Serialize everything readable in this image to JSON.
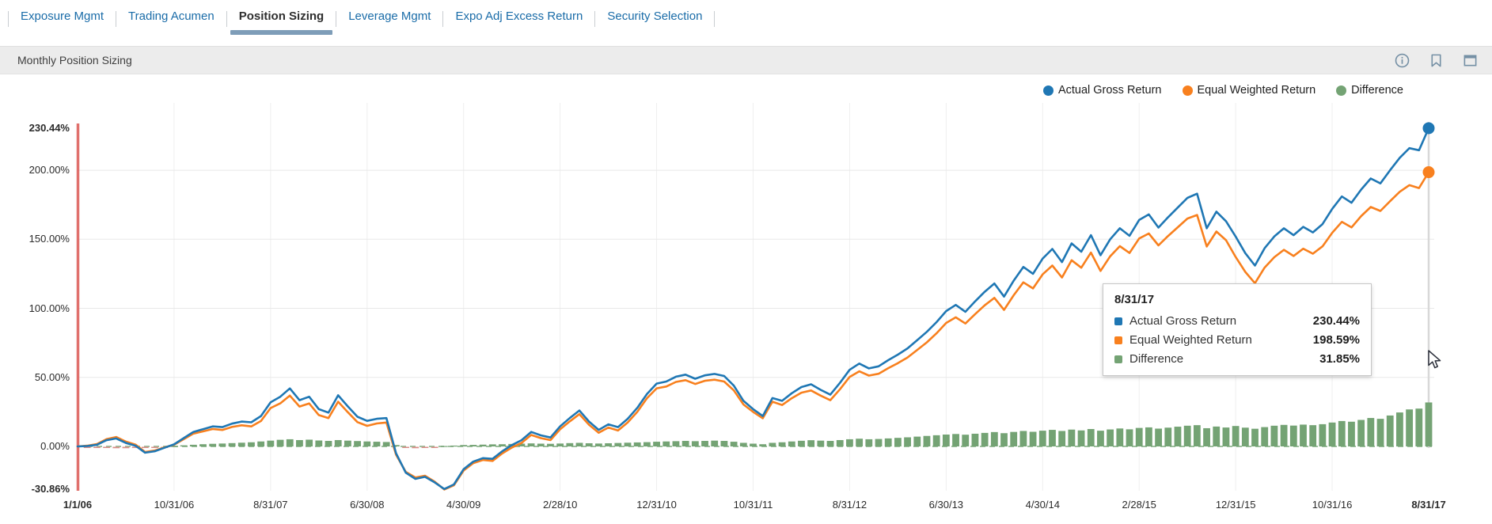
{
  "tabs": [
    {
      "label": "Exposure Mgmt",
      "active": false
    },
    {
      "label": "Trading Acumen",
      "active": false
    },
    {
      "label": "Position Sizing",
      "active": true
    },
    {
      "label": "Leverage Mgmt",
      "active": false
    },
    {
      "label": "Expo Adj Excess Return",
      "active": false
    },
    {
      "label": "Security Selection",
      "active": false
    }
  ],
  "panel": {
    "title": "Monthly Position Sizing",
    "icons": [
      "info-icon",
      "bookmark-icon",
      "window-icon"
    ]
  },
  "legend": [
    {
      "label": "Actual Gross Return",
      "color": "#1f77b4"
    },
    {
      "label": "Equal Weighted Return",
      "color": "#f8801e"
    },
    {
      "label": "Difference",
      "color": "#74a374"
    }
  ],
  "tooltip": {
    "date": "8/31/17",
    "rows": [
      {
        "label": "Actual Gross Return",
        "value": "230.44%",
        "color": "#1f77b4"
      },
      {
        "label": "Equal Weighted Return",
        "value": "198.59%",
        "color": "#f8801e"
      },
      {
        "label": "Difference",
        "value": "31.85%",
        "color": "#74a374"
      }
    ]
  },
  "colors": {
    "blue": "#1f77b4",
    "orange": "#f8801e",
    "green": "#74a374",
    "neg_bar": "#d98c86",
    "red_start_line": "#dd615d",
    "grid_h": "#e8e8e8",
    "grid_v": "#efefef",
    "zero_dash": "#9ebf9e",
    "hover_line": "#d8d8d8",
    "tab_blue": "#1a6ca8",
    "active_underline": "#7e9db8",
    "header_bg": "#ececec",
    "icon_gray": "#7590a5"
  },
  "chart_data": {
    "type": "line+bar",
    "title": "Monthly Position Sizing",
    "x_start_label": "1/1/06",
    "x_end_label": "8/31/17",
    "months_total": 140,
    "x_ticks": [
      {
        "label": "1/1/06",
        "month": 0,
        "bold": true
      },
      {
        "label": "10/31/06",
        "month": 10,
        "bold": false
      },
      {
        "label": "8/31/07",
        "month": 20,
        "bold": false
      },
      {
        "label": "6/30/08",
        "month": 30,
        "bold": false
      },
      {
        "label": "4/30/09",
        "month": 40,
        "bold": false
      },
      {
        "label": "2/28/10",
        "month": 50,
        "bold": false
      },
      {
        "label": "12/31/10",
        "month": 60,
        "bold": false
      },
      {
        "label": "10/31/11",
        "month": 70,
        "bold": false
      },
      {
        "label": "8/31/12",
        "month": 80,
        "bold": false
      },
      {
        "label": "6/30/13",
        "month": 90,
        "bold": false
      },
      {
        "label": "4/30/14",
        "month": 100,
        "bold": false
      },
      {
        "label": "2/28/15",
        "month": 110,
        "bold": false
      },
      {
        "label": "12/31/15",
        "month": 120,
        "bold": false
      },
      {
        "label": "10/31/16",
        "month": 130,
        "bold": false
      },
      {
        "label": "8/31/17",
        "month": 140,
        "bold": true
      }
    ],
    "y_ticks": [
      {
        "label": "230.44%",
        "value": 230.44,
        "bold": true,
        "grid": "none"
      },
      {
        "label": "200.00%",
        "value": 200,
        "bold": false,
        "grid": "solid"
      },
      {
        "label": "150.00%",
        "value": 150,
        "bold": false,
        "grid": "solid"
      },
      {
        "label": "100.00%",
        "value": 100,
        "bold": false,
        "grid": "solid"
      },
      {
        "label": "50.00%",
        "value": 50,
        "bold": false,
        "grid": "solid"
      },
      {
        "label": "0.00%",
        "value": 0,
        "bold": false,
        "grid": "dashed"
      },
      {
        "label": "-30.86%",
        "value": -30.86,
        "bold": true,
        "grid": "none"
      }
    ],
    "ylim": [
      -30.86,
      230.44
    ],
    "final_values": {
      "actual_gross": "230.44%",
      "equal_weighted": "198.59%",
      "difference": "31.85%"
    },
    "series": [
      {
        "name": "Actual Gross Return",
        "kind": "line",
        "color": "#1f77b4",
        "end_dot": true,
        "values": [
          0,
          0.3,
          1.2,
          4.5,
          5.8,
          2.5,
          0.5,
          -4.5,
          -3.5,
          -1,
          1.5,
          6,
          10.5,
          12.5,
          14.5,
          14,
          16.5,
          18,
          17.5,
          22,
          32,
          36,
          42,
          33.5,
          36,
          27,
          24.5,
          37,
          29,
          21.5,
          18.5,
          20,
          20.5,
          -5,
          -19,
          -23.5,
          -22,
          -26,
          -30.86,
          -27.5,
          -16.5,
          -11,
          -8.5,
          -9,
          -3.5,
          1,
          4.5,
          10.5,
          8,
          6.5,
          14.5,
          20.5,
          26,
          18,
          12,
          16,
          14,
          20,
          28,
          38,
          45.5,
          47,
          50.5,
          52,
          49,
          51.5,
          52.5,
          51,
          44,
          33,
          27,
          22,
          35,
          33,
          38.5,
          43,
          45,
          41,
          37.5,
          46,
          55.5,
          60,
          56.5,
          58,
          62.5,
          66.5,
          71,
          77,
          83,
          90,
          98,
          102.5,
          97.5,
          105,
          112,
          118,
          108.5,
          120,
          130,
          125,
          136,
          143,
          133.5,
          147,
          141,
          153,
          138.5,
          150,
          158,
          152.5,
          164,
          168,
          158.5,
          166,
          173,
          180,
          183,
          158,
          170,
          163,
          152,
          140,
          131,
          143.5,
          152,
          158,
          153,
          159,
          155,
          161,
          172,
          181,
          176.5,
          186,
          194,
          190.5,
          200,
          209,
          216,
          214.5,
          230.44
        ]
      },
      {
        "name": "Equal Weighted Return",
        "kind": "line",
        "color": "#f8801e",
        "end_dot": true,
        "values": [
          0,
          0.5,
          1.7,
          5.3,
          6.8,
          3.5,
          1.3,
          -4,
          -3,
          -0.7,
          1.2,
          5.2,
          9.3,
          10.9,
          12.6,
          11.9,
          14.1,
          15.3,
          14.5,
          18.4,
          27.8,
          31.2,
          36.8,
          28.9,
          31.1,
          22.7,
          20.5,
          32.4,
          24.8,
          17.6,
          14.9,
          16.6,
          17.3,
          -6,
          -18.4,
          -22.5,
          -21.2,
          -25.5,
          -31.16,
          -28.1,
          -17.5,
          -12.1,
          -9.8,
          -10.5,
          -5.1,
          -0.8,
          2.5,
          8.3,
          6,
          4.6,
          12.4,
          18.1,
          23.4,
          15.7,
          9.9,
          13.7,
          11.5,
          17.3,
          25.1,
          34.9,
          42.1,
          43.4,
          46.7,
          48,
          45.2,
          47.5,
          48.3,
          47,
          40.6,
          30.4,
          25,
          20.4,
          32.4,
          30,
          34.9,
          38.9,
          40.5,
          36.8,
          33.5,
          41.4,
          50.3,
          54.4,
          51.3,
          52.6,
          56.7,
          60.3,
          64.4,
          69.9,
          75.4,
          81.9,
          89.4,
          93.5,
          89,
          95.8,
          102.2,
          107.6,
          98.9,
          109.5,
          118.8,
          114.4,
          124.6,
          131,
          122.3,
          134.8,
          129.4,
          140.4,
          127.1,
          137.7,
          145,
          140.1,
          150.6,
          154.2,
          145.6,
          152.4,
          158.7,
          165,
          167.6,
          144.8,
          155.6,
          149.3,
          137.2,
          126.4,
          118.2,
          129.5,
          137,
          142.4,
          137.9,
          143.2,
          139.6,
          144.9,
          154.7,
          162.6,
          158.6,
          166.8,
          173.4,
          170.5,
          177.6,
          184.4,
          189.2,
          187.1,
          198.59
        ]
      },
      {
        "name": "Difference",
        "kind": "bar",
        "color": "#74a374",
        "end_dot": false,
        "values": [
          0,
          -0.2,
          -0.5,
          -0.8,
          -1,
          -1,
          -0.8,
          -0.5,
          -0.5,
          -0.3,
          0.3,
          0.8,
          1.2,
          1.6,
          1.9,
          2.1,
          2.4,
          2.7,
          3,
          3.6,
          4.2,
          4.8,
          5.2,
          4.6,
          4.9,
          4.3,
          4,
          4.6,
          4.2,
          3.9,
          3.6,
          3.4,
          3.2,
          1,
          -0.6,
          -1,
          -0.8,
          -0.5,
          0.3,
          0.6,
          1,
          1.1,
          1.3,
          1.5,
          1.6,
          1.8,
          2,
          2.2,
          2,
          1.9,
          2.1,
          2.4,
          2.6,
          2.3,
          2.1,
          2.3,
          2.5,
          2.7,
          2.9,
          3.1,
          3.4,
          3.6,
          3.8,
          4,
          3.8,
          4,
          4.2,
          4,
          3.4,
          2.6,
          2,
          1.6,
          2.6,
          3,
          3.6,
          4.1,
          4.5,
          4.2,
          4,
          4.6,
          5.2,
          5.6,
          5.2,
          5.4,
          5.8,
          6.2,
          6.6,
          7.1,
          7.6,
          8.1,
          8.6,
          9,
          8.5,
          9.2,
          9.8,
          10.4,
          9.6,
          10.5,
          11.2,
          10.6,
          11.4,
          12,
          11.2,
          12.2,
          11.6,
          12.6,
          11.4,
          12.3,
          13,
          12.4,
          13.4,
          13.8,
          12.9,
          13.6,
          14.3,
          15,
          15.4,
          13.2,
          14.4,
          13.7,
          14.8,
          13.6,
          12.8,
          14,
          15,
          15.6,
          15.1,
          15.8,
          15.4,
          16.1,
          17.3,
          18.4,
          17.9,
          19.2,
          20.6,
          20,
          22.4,
          24.6,
          26.8,
          27.4,
          31.85
        ]
      }
    ],
    "legend_position": "top-right",
    "grid": true,
    "hover_month": 140,
    "start_marker": "red-vertical-line"
  }
}
